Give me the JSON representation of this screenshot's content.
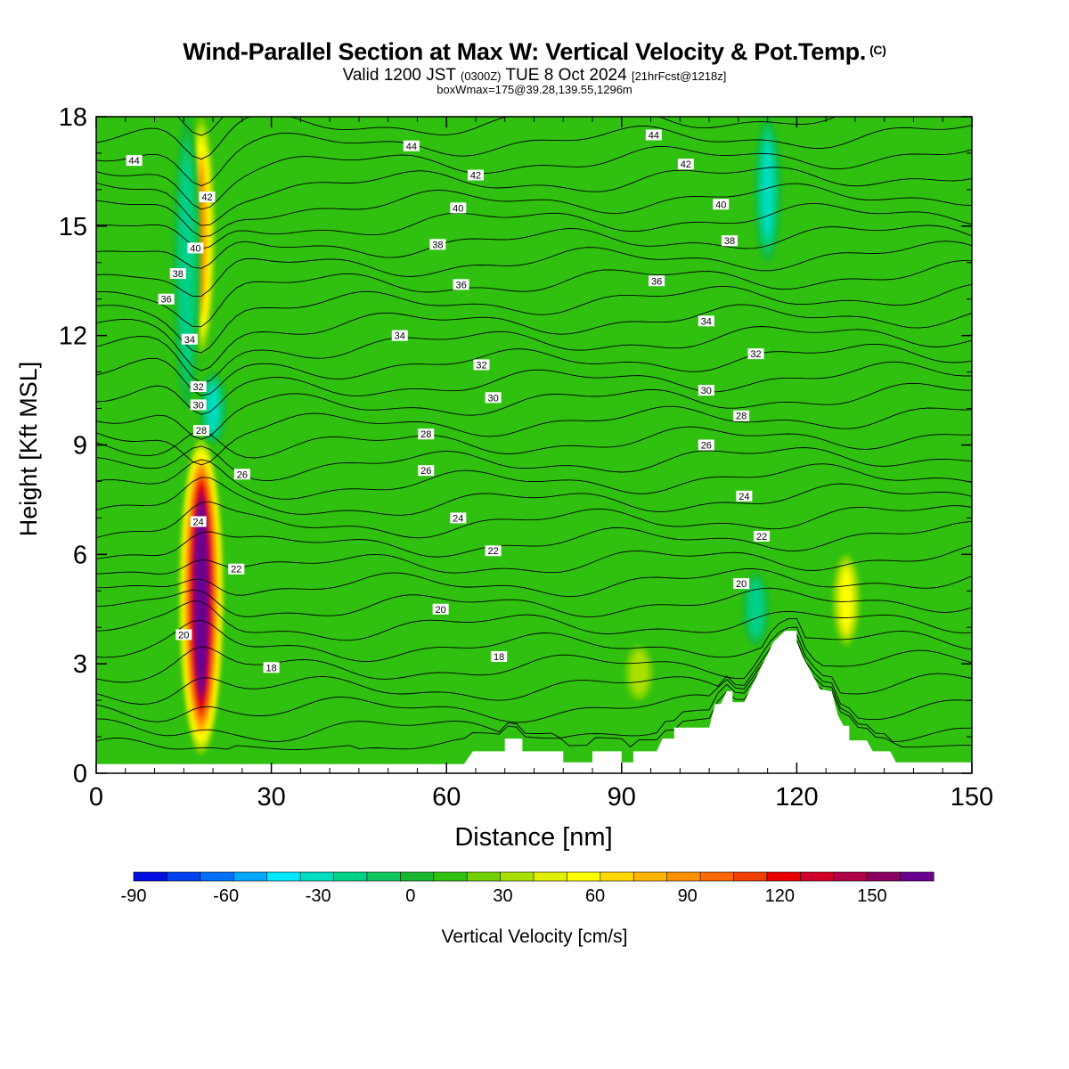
{
  "title": {
    "main": "Wind-Parallel Section at Max W: Vertical Velocity & Pot.Temp.",
    "copyright": "(C)",
    "valid_prefix": "Valid 1200 JST",
    "valid_utc": "(0300Z)",
    "valid_date": "TUE 8 Oct 2024",
    "forecast": "[21hrFcst@1218z]",
    "boxmax": "boxWmax=175@39.28,139.55,1296m"
  },
  "chart_data": {
    "type": "heatmap",
    "xlabel": "Distance [nm]",
    "ylabel": "Height [Kft MSL]",
    "xlim": [
      0,
      150
    ],
    "ylim": [
      0,
      18
    ],
    "x_ticks": [
      0,
      30,
      60,
      90,
      120,
      150
    ],
    "y_ticks": [
      0,
      3,
      6,
      9,
      12,
      15,
      18
    ],
    "background_w_cms": 0,
    "colorbar": {
      "label": "Vertical Velocity [cm/s]",
      "min": -90,
      "max": 170,
      "step": 10,
      "tick_labels": [
        -90,
        -60,
        -30,
        0,
        30,
        60,
        90,
        120,
        150
      ],
      "colors": [
        "#0010e0",
        "#0040f0",
        "#0070f8",
        "#00a8ff",
        "#00e8ff",
        "#00dcc0",
        "#00d088",
        "#10c860",
        "#18b830",
        "#30c010",
        "#70d000",
        "#a8e000",
        "#e0f000",
        "#ffff00",
        "#ffd800",
        "#ffb400",
        "#ff9000",
        "#ff6800",
        "#f04000",
        "#e80000",
        "#d00028",
        "#b00048",
        "#8a0060",
        "#6a0090"
      ]
    },
    "vertical_velocity_features": [
      {
        "x": 18,
        "z_bottom": 0.5,
        "z_top": 9.2,
        "w_peak": 175,
        "sign": "updraft"
      },
      {
        "x": 18,
        "z_bottom": 11.5,
        "z_top": 18,
        "w_peak": 70,
        "sign": "updraft"
      },
      {
        "x": 15.5,
        "z_bottom": 10,
        "z_top": 18,
        "w_peak": -30,
        "sign": "downdraft"
      },
      {
        "x": 20,
        "z_bottom": 9,
        "z_top": 11,
        "w_peak": -45,
        "sign": "downdraft"
      },
      {
        "x": 115,
        "z_bottom": 14,
        "z_top": 18,
        "w_peak": -40,
        "sign": "downdraft"
      },
      {
        "x": 113,
        "z_bottom": 3.5,
        "z_top": 5.5,
        "w_peak": -35,
        "sign": "downdraft"
      },
      {
        "x": 128.5,
        "z_bottom": 3.5,
        "z_top": 6,
        "w_peak": 40,
        "sign": "updraft"
      },
      {
        "x": 93,
        "z_bottom": 2,
        "z_top": 3.5,
        "w_peak": 25,
        "sign": "updraft"
      }
    ],
    "terrain_kft": [
      [
        0,
        0.25
      ],
      [
        10,
        0.25
      ],
      [
        20,
        0.25
      ],
      [
        30,
        0.25
      ],
      [
        40,
        0.25
      ],
      [
        50,
        0.25
      ],
      [
        60,
        0.25
      ],
      [
        63,
        0.25
      ],
      [
        64.5,
        0.6
      ],
      [
        70,
        0.6
      ],
      [
        70,
        0.95
      ],
      [
        73,
        0.95
      ],
      [
        73,
        0.6
      ],
      [
        80,
        0.6
      ],
      [
        80,
        0.3
      ],
      [
        85,
        0.3
      ],
      [
        85,
        0.6
      ],
      [
        90,
        0.6
      ],
      [
        90,
        0.3
      ],
      [
        92,
        0.3
      ],
      [
        92,
        0.6
      ],
      [
        96,
        0.6
      ],
      [
        97,
        0.95
      ],
      [
        99,
        0.95
      ],
      [
        99,
        1.25
      ],
      [
        105,
        1.25
      ],
      [
        106,
        1.9
      ],
      [
        107,
        1.9
      ],
      [
        108,
        2.25
      ],
      [
        109,
        2.25
      ],
      [
        109,
        1.95
      ],
      [
        111,
        1.95
      ],
      [
        112,
        2.3
      ],
      [
        113,
        2.6
      ],
      [
        114,
        2.95
      ],
      [
        115,
        3.25
      ],
      [
        116,
        3.6
      ],
      [
        118,
        3.9
      ],
      [
        120,
        3.9
      ],
      [
        120,
        3.6
      ],
      [
        121,
        3.2
      ],
      [
        122,
        2.9
      ],
      [
        123,
        2.6
      ],
      [
        124,
        2.3
      ],
      [
        126,
        2.25
      ],
      [
        127,
        1.6
      ],
      [
        128,
        1.3
      ],
      [
        129,
        1.3
      ],
      [
        129,
        0.9
      ],
      [
        132,
        0.9
      ],
      [
        133,
        0.6
      ],
      [
        136,
        0.6
      ],
      [
        137,
        0.3
      ],
      [
        140,
        0.3
      ],
      [
        150,
        0.3
      ]
    ],
    "theta_labels": [
      {
        "text": "44",
        "x": 6.5,
        "z": 16.8
      },
      {
        "text": "44",
        "x": 54,
        "z": 17.2
      },
      {
        "text": "44",
        "x": 95.5,
        "z": 17.5
      },
      {
        "text": "42",
        "x": 19,
        "z": 15.8
      },
      {
        "text": "42",
        "x": 65,
        "z": 16.4
      },
      {
        "text": "42",
        "x": 101,
        "z": 16.7
      },
      {
        "text": "40",
        "x": 17,
        "z": 14.4
      },
      {
        "text": "40",
        "x": 62,
        "z": 15.5
      },
      {
        "text": "40",
        "x": 107,
        "z": 15.6
      },
      {
        "text": "38",
        "x": 14,
        "z": 13.7
      },
      {
        "text": "38",
        "x": 58.5,
        "z": 14.5
      },
      {
        "text": "38",
        "x": 108.5,
        "z": 14.6
      },
      {
        "text": "36",
        "x": 12,
        "z": 13
      },
      {
        "text": "36",
        "x": 62.5,
        "z": 13.4
      },
      {
        "text": "36",
        "x": 96,
        "z": 13.5
      },
      {
        "text": "34",
        "x": 16,
        "z": 11.9
      },
      {
        "text": "34",
        "x": 52,
        "z": 12
      },
      {
        "text": "34",
        "x": 104.5,
        "z": 12.4
      },
      {
        "text": "32",
        "x": 17.5,
        "z": 10.6
      },
      {
        "text": "32",
        "x": 66,
        "z": 11.2
      },
      {
        "text": "32",
        "x": 113,
        "z": 11.5
      },
      {
        "text": "30",
        "x": 17.5,
        "z": 10.1
      },
      {
        "text": "30",
        "x": 68,
        "z": 10.3
      },
      {
        "text": "30",
        "x": 104.5,
        "z": 10.5
      },
      {
        "text": "28",
        "x": 18,
        "z": 9.4
      },
      {
        "text": "28",
        "x": 56.5,
        "z": 9.3
      },
      {
        "text": "28",
        "x": 110.5,
        "z": 9.8
      },
      {
        "text": "26",
        "x": 25,
        "z": 8.2
      },
      {
        "text": "26",
        "x": 56.5,
        "z": 8.3
      },
      {
        "text": "26",
        "x": 104.5,
        "z": 9
      },
      {
        "text": "24",
        "x": 17.5,
        "z": 6.9
      },
      {
        "text": "24",
        "x": 62,
        "z": 7
      },
      {
        "text": "24",
        "x": 111,
        "z": 7.6
      },
      {
        "text": "22",
        "x": 24,
        "z": 5.6
      },
      {
        "text": "22",
        "x": 68,
        "z": 6.1
      },
      {
        "text": "22",
        "x": 114,
        "z": 6.5
      },
      {
        "text": "20",
        "x": 15,
        "z": 3.8
      },
      {
        "text": "20",
        "x": 59,
        "z": 4.5
      },
      {
        "text": "20",
        "x": 110.5,
        "z": 5.2
      },
      {
        "text": "18",
        "x": 30,
        "z": 2.9
      },
      {
        "text": "18",
        "x": 69,
        "z": 3.2
      }
    ]
  }
}
